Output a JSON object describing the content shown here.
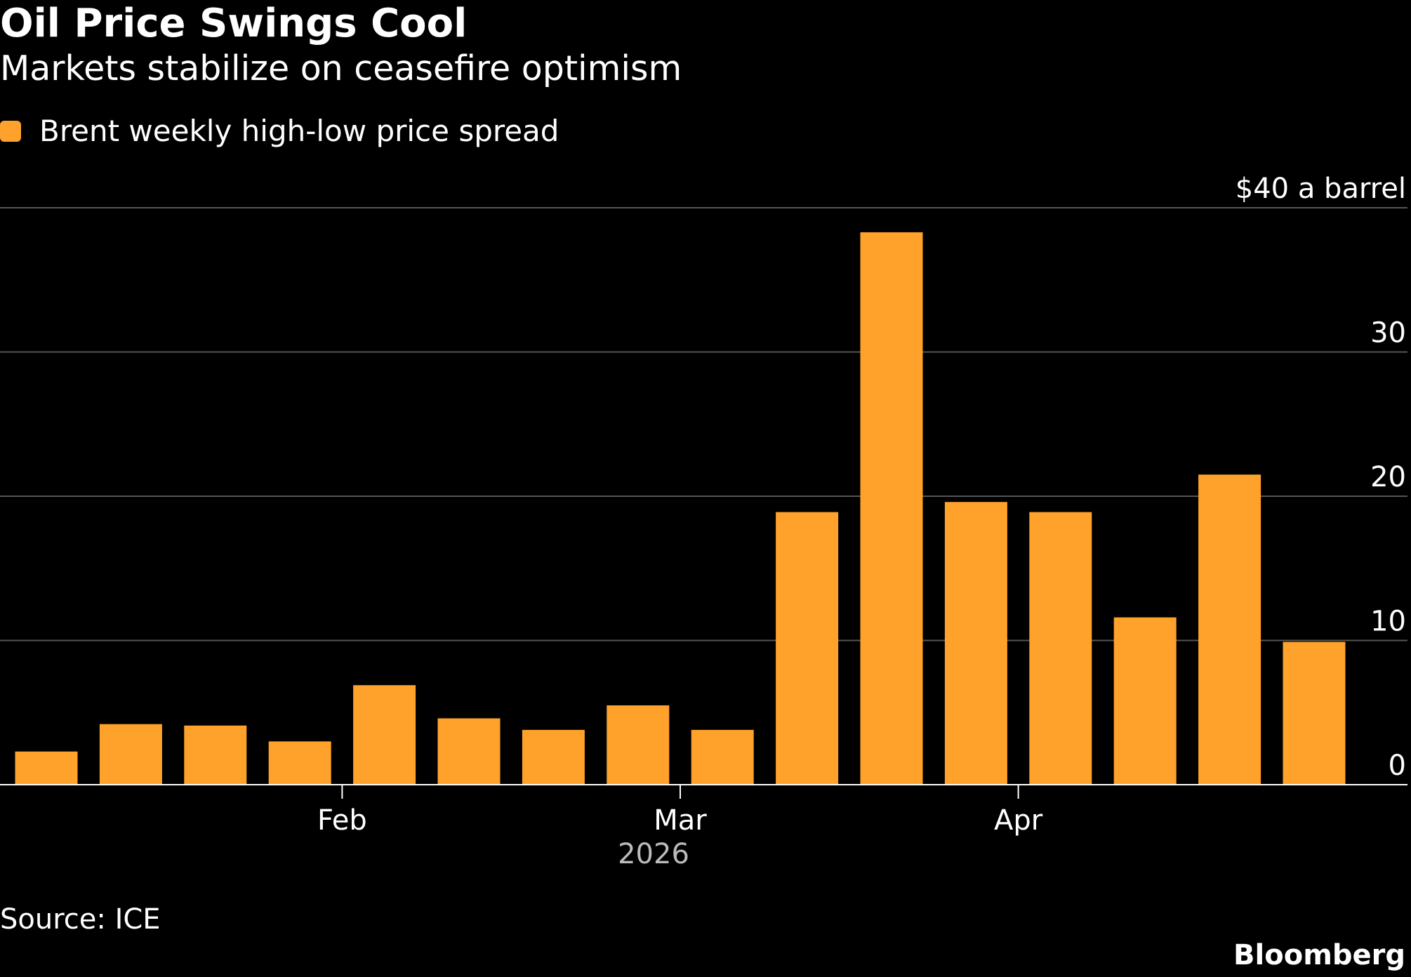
{
  "header": {
    "title": "Oil Price Swings Cool",
    "subtitle": "Markets stabilize on ceasefire optimism"
  },
  "legend": {
    "label": "Brent weekly high-low price spread",
    "color": "#FFA22B"
  },
  "chart_data": {
    "type": "bar",
    "series": [
      {
        "name": "Brent weekly high-low price spread",
        "color": "#FFA22B",
        "values": [
          2.3,
          4.2,
          4.1,
          3.0,
          6.9,
          4.6,
          3.8,
          5.5,
          3.8,
          18.9,
          38.3,
          19.6,
          18.9,
          11.6,
          21.5,
          9.9
        ]
      }
    ],
    "ylim": [
      0,
      40
    ],
    "y_ticks": [
      0,
      10,
      20,
      30,
      40
    ],
    "y_tick_labels": [
      "0",
      "10",
      "20",
      "30",
      "$40 a barrel"
    ],
    "y_unit_label": "$40 a barrel",
    "x_tick_labels": [
      {
        "label": "Feb",
        "after_bar_index": 4
      },
      {
        "label": "Mar",
        "after_bar_index": 8
      },
      {
        "label": "Apr",
        "after_bar_index": 12
      }
    ],
    "x_year_label": "2026",
    "grid": true,
    "grid_color": "#555555",
    "axis_color": "#ffffff",
    "legend_position": "top-left"
  },
  "footer": {
    "source": "Source: ICE",
    "brand": "Bloomberg"
  }
}
